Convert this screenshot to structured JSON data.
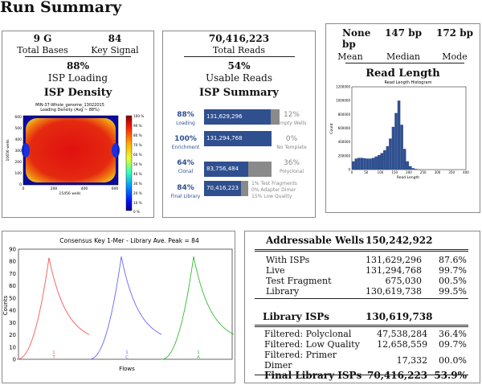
{
  "page_title": "Run Summary",
  "panel1": {
    "total_bases_value": "9 G",
    "total_bases_label": "Total Bases",
    "key_signal_value": "84",
    "key_signal_label": "Key Signal",
    "isp_loading_value": "88%",
    "isp_loading_label": "ISP Loading",
    "isp_density_title": "ISP Density",
    "heatmap_title_line1": "MIN-37-Whole_genome_13022015",
    "heatmap_title_line2": "Loading Density (Avg ~ 88%)",
    "heatmap_xlabel": "15456 wells",
    "heatmap_ylabel": "10656 wells",
    "heatmap_xticks": [
      "0",
      "200",
      "400",
      "600"
    ],
    "heatmap_yticks": [
      "0",
      "100",
      "200",
      "300",
      "400",
      "500",
      "600"
    ],
    "colorbar_ticks": [
      "100 %",
      "90 %",
      "80 %",
      "70 %",
      "60 %",
      "50 %",
      "40 %",
      "30 %",
      "20 %",
      "10 %",
      "0 %"
    ]
  },
  "panel2": {
    "total_reads_value": "70,416,223",
    "total_reads_label": "Total Reads",
    "usable_reads_value": "54%",
    "usable_reads_label": "Usable Reads",
    "isp_summary_title": "ISP Summary",
    "rows": [
      {
        "pct": "88%",
        "label": "Loading",
        "bar_value": "131,629,296",
        "fill": 0.88,
        "right_pct": "12%",
        "right_label": "Empty Wells"
      },
      {
        "pct": "100%",
        "label": "Enrichment",
        "bar_value": "131,294,768",
        "fill": 1.0,
        "right_pct": "0%",
        "right_label": "No Template"
      },
      {
        "pct": "64%",
        "label": "Clonal",
        "bar_value": "83,756,484",
        "fill": 0.64,
        "right_pct": "36%",
        "right_label": "Polyclonal"
      },
      {
        "pct": "84%",
        "label": "Final Library",
        "bar_value": "70,416,223",
        "fill": 0.84,
        "right_pct": "",
        "right_label": ""
      }
    ],
    "final_notes": [
      "1% Test Fragments",
      "0% Adapter Dimer",
      "15% Low Quality"
    ]
  },
  "panel3": {
    "mean_value": "None bp",
    "mean_label": "Mean",
    "median_value": "147 bp",
    "median_label": "Median",
    "mode_value": "172 bp",
    "mode_label": "Mode",
    "read_length_title": "Read Length",
    "hist_title": "Read Length Histogram",
    "hist_xlabel": "Read Length",
    "hist_ylabel": "Count",
    "hist_xticks": [
      "0",
      "50",
      "100",
      "150",
      "200",
      "250",
      "300",
      "350",
      "400"
    ],
    "hist_yticks": [
      "1200000",
      "1000000",
      "800000",
      "600000",
      "400000",
      "200000",
      "0"
    ]
  },
  "panel4": {
    "chart_title": "Consensus Key 1-Mer - Library Ave. Peak = 84",
    "xlabel": "Flows",
    "ylabel": "Counts",
    "yticks": [
      "90",
      "80",
      "70",
      "60",
      "50",
      "40",
      "30",
      "20",
      "10",
      "0"
    ],
    "xtick_labels": [
      "1\nT",
      "1\nC",
      "1\nA"
    ]
  },
  "panel5": {
    "addressable_label": "Addressable Wells",
    "addressable_value": "150,242,922",
    "group1": [
      {
        "label": "With ISPs",
        "value": "131,629,296",
        "pct": "87.6%"
      },
      {
        "label": "Live",
        "value": "131,294,768",
        "pct": "99.7%"
      },
      {
        "label": "Test Fragment",
        "value": "675,030",
        "pct": "00.5%"
      },
      {
        "label": "Library",
        "value": "130,619,738",
        "pct": "99.5%"
      }
    ],
    "library_isps_label": "Library ISPs",
    "library_isps_value": "130,619,738",
    "group2": [
      {
        "label": "Filtered: Polyclonal",
        "value": "47,538,284",
        "pct": "36.4%"
      },
      {
        "label": "Filtered: Low Quality",
        "value": "12,658,559",
        "pct": "09.7%"
      },
      {
        "label": "Filtered: Primer Dimer",
        "value": "17,332",
        "pct": "00.0%"
      }
    ],
    "final_label": "Final Library ISPs",
    "final_value": "70,416,223",
    "final_pct": "53.9%"
  },
  "chart_data": [
    {
      "type": "heatmap",
      "title": "MIN-37-Whole_genome_13022015 Loading Density (Avg ~ 88%)",
      "xlabel": "15456 wells",
      "ylabel": "10656 wells",
      "colorbar_range": [
        0,
        100
      ]
    },
    {
      "type": "bar",
      "title": "Read Length Histogram",
      "xlabel": "Read Length",
      "ylabel": "Count",
      "xlim": [
        0,
        400
      ],
      "ylim": [
        0,
        1200000
      ],
      "x": [
        10,
        20,
        30,
        40,
        50,
        60,
        70,
        80,
        90,
        100,
        110,
        120,
        130,
        140,
        150,
        160,
        170,
        180,
        190,
        200,
        210,
        220,
        230,
        240,
        250
      ],
      "values": [
        120000,
        160000,
        170000,
        170000,
        165000,
        160000,
        160000,
        170000,
        190000,
        210000,
        240000,
        280000,
        340000,
        450000,
        620000,
        820000,
        1000000,
        650000,
        300000,
        120000,
        50000,
        20000,
        10000,
        5000,
        2000
      ]
    },
    {
      "type": "line",
      "title": "Consensus Key 1-Mer - Library Ave. Peak = 84",
      "xlabel": "Flows",
      "ylabel": "Counts",
      "ylim": [
        0,
        90
      ],
      "series": [
        {
          "name": "T",
          "color": "#ff5555",
          "peak": 83
        },
        {
          "name": "C",
          "color": "#6666ff",
          "peak": 84
        },
        {
          "name": "A",
          "color": "#33bb33",
          "peak": 84
        }
      ]
    }
  ]
}
